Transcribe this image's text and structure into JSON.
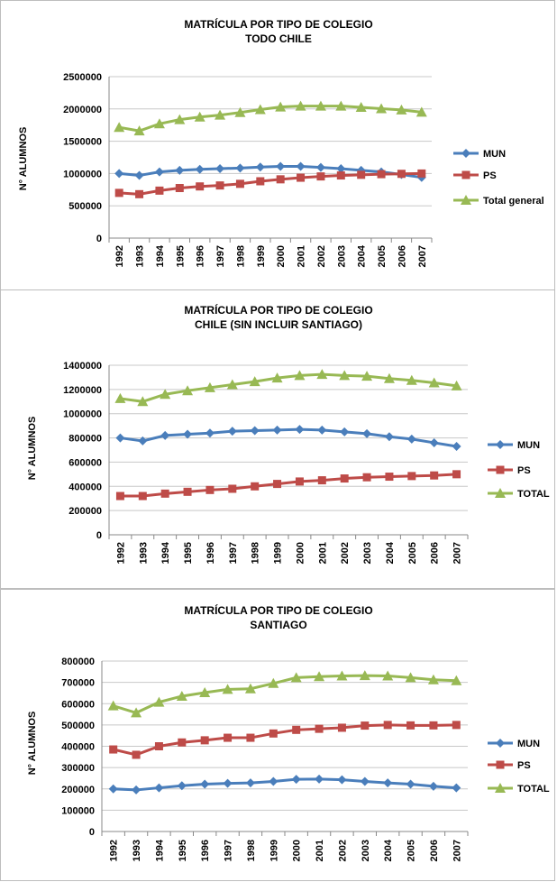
{
  "chart_data": [
    {
      "type": "line",
      "title": "MATRÍCULA POR TIPO DE COLEGIO",
      "subtitle": "TODO CHILE",
      "xlabel": "",
      "ylabel": "N° ALUMNOS",
      "categories": [
        "1992",
        "1993",
        "1994",
        "1995",
        "1996",
        "1997",
        "1998",
        "1999",
        "2000",
        "2001",
        "2002",
        "2003",
        "2004",
        "2005",
        "2006",
        "2007"
      ],
      "ylim": [
        0,
        2500000
      ],
      "yticks": [
        "0",
        "500000",
        "1000000",
        "1500000",
        "2000000",
        "2500000"
      ],
      "grid": true,
      "legend_position": "right",
      "series": [
        {
          "name": "MUN",
          "color": "#4a7ebb",
          "marker": "diamond",
          "values": [
            1000000,
            970000,
            1025000,
            1050000,
            1065000,
            1075000,
            1085000,
            1100000,
            1110000,
            1110000,
            1095000,
            1075000,
            1050000,
            1025000,
            985000,
            940000
          ]
        },
        {
          "name": "PS",
          "color": "#be4b48",
          "marker": "square",
          "values": [
            700000,
            680000,
            735000,
            775000,
            800000,
            815000,
            840000,
            880000,
            910000,
            935000,
            955000,
            970000,
            980000,
            990000,
            995000,
            1000000
          ]
        },
        {
          "name": "Total general",
          "color": "#98b954",
          "marker": "triangle",
          "values": [
            1715000,
            1660000,
            1770000,
            1835000,
            1875000,
            1905000,
            1945000,
            1990000,
            2030000,
            2045000,
            2045000,
            2045000,
            2025000,
            2005000,
            1985000,
            1950000
          ]
        }
      ]
    },
    {
      "type": "line",
      "title": "MATRÍCULA POR TIPO DE COLEGIO",
      "subtitle": "CHILE (SIN INCLUIR SANTIAGO)",
      "xlabel": "",
      "ylabel": "N° ALUMNOS",
      "categories": [
        "1992",
        "1993",
        "1994",
        "1995",
        "1996",
        "1997",
        "1998",
        "1999",
        "2000",
        "2001",
        "2002",
        "2003",
        "2004",
        "2005",
        "2006",
        "2007"
      ],
      "ylim": [
        0,
        1400000
      ],
      "yticks": [
        "0",
        "200000",
        "400000",
        "600000",
        "800000",
        "1000000",
        "1200000",
        "1400000"
      ],
      "grid": true,
      "legend_position": "right",
      "series": [
        {
          "name": "MUN",
          "color": "#4a7ebb",
          "marker": "diamond",
          "values": [
            800000,
            775000,
            820000,
            830000,
            840000,
            855000,
            860000,
            865000,
            870000,
            865000,
            850000,
            835000,
            810000,
            790000,
            760000,
            730000
          ]
        },
        {
          "name": "PS",
          "color": "#be4b48",
          "marker": "square",
          "values": [
            320000,
            320000,
            340000,
            355000,
            370000,
            380000,
            400000,
            420000,
            440000,
            450000,
            465000,
            475000,
            480000,
            485000,
            490000,
            500000
          ]
        },
        {
          "name": "TOTAL",
          "color": "#98b954",
          "marker": "triangle",
          "values": [
            1125000,
            1100000,
            1160000,
            1190000,
            1215000,
            1240000,
            1265000,
            1295000,
            1315000,
            1325000,
            1315000,
            1310000,
            1290000,
            1275000,
            1255000,
            1230000
          ]
        }
      ]
    },
    {
      "type": "line",
      "title": "MATRÍCULA POR TIPO DE COLEGIO",
      "subtitle": "SANTIAGO",
      "xlabel": "",
      "ylabel": "N° ALUMNOS",
      "categories": [
        "1992",
        "1993",
        "1994",
        "1995",
        "1996",
        "1997",
        "1998",
        "1999",
        "2000",
        "2001",
        "2002",
        "2003",
        "2004",
        "2005",
        "2006",
        "2007"
      ],
      "ylim": [
        0,
        800000
      ],
      "yticks": [
        "0",
        "100000",
        "200000",
        "300000",
        "400000",
        "500000",
        "600000",
        "700000",
        "800000"
      ],
      "grid": true,
      "legend_position": "right",
      "series": [
        {
          "name": "MUN",
          "color": "#4a7ebb",
          "marker": "diamond",
          "values": [
            200000,
            195000,
            205000,
            215000,
            222000,
            226000,
            228000,
            235000,
            245000,
            246000,
            243000,
            235000,
            228000,
            222000,
            212000,
            205000
          ]
        },
        {
          "name": "PS",
          "color": "#be4b48",
          "marker": "square",
          "values": [
            385000,
            360000,
            400000,
            418000,
            428000,
            440000,
            440000,
            460000,
            477000,
            482000,
            487000,
            497000,
            500000,
            498000,
            498000,
            500000
          ]
        },
        {
          "name": "TOTAL",
          "color": "#98b954",
          "marker": "triangle",
          "values": [
            590000,
            557000,
            607000,
            635000,
            652000,
            667000,
            670000,
            695000,
            722000,
            727000,
            730000,
            732000,
            730000,
            722000,
            712000,
            708000
          ]
        }
      ]
    }
  ]
}
